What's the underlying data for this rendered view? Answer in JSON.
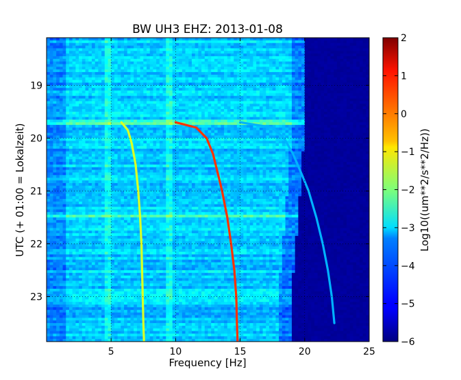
{
  "chart_data": {
    "type": "heatmap",
    "title": "BW UH3 EHZ: 2013-01-08",
    "xlabel": "Frequency [Hz]",
    "ylabel": "UTC (+ 01:00 = Lokalzeit)",
    "xlim": [
      0,
      25
    ],
    "ylim": [
      18.1,
      23.85
    ],
    "y_inverted": true,
    "x_ticks": [
      5,
      10,
      15,
      20,
      25
    ],
    "x_tick_labels": [
      "5",
      "10",
      "15",
      "20",
      "25"
    ],
    "y_ticks": [
      19,
      20,
      21,
      22,
      23
    ],
    "y_tick_labels": [
      "19",
      "20",
      "21",
      "22",
      "23"
    ],
    "grid": true,
    "colorbar": {
      "label": "Log10((um**2/s**2/Hz))",
      "range": [
        -6,
        2
      ],
      "ticks": [
        2,
        1,
        0,
        -1,
        -2,
        -3,
        -4,
        -5,
        -6
      ],
      "tick_labels": [
        "2",
        "1",
        "0",
        "−1",
        "−2",
        "−3",
        "−4",
        "−5",
        "−6"
      ],
      "colormap": "jet"
    },
    "features": {
      "cutoff_frequency_hz": {
        "y": [
          18.1,
          19.7,
          19.8,
          21.5,
          22.9,
          23.85
        ],
        "x": [
          20,
          20,
          20,
          19.5,
          19,
          19
        ]
      },
      "tremor_lines": [
        {
          "name": "",
          "peak_value": -1.3,
          "y": [
            19.7,
            19.85,
            20.1,
            20.5,
            21.0,
            21.5,
            22.0,
            22.5,
            23.0,
            23.5,
            23.85
          ],
          "x": [
            5.8,
            6.3,
            6.6,
            6.9,
            7.1,
            7.25,
            7.35,
            7.4,
            7.45,
            7.5,
            7.55
          ]
        },
        {
          "name": "",
          "peak_value": 0.6,
          "y": [
            19.7,
            19.8,
            20.0,
            20.3,
            20.7,
            21.0,
            21.5,
            22.0,
            22.5,
            23.0,
            23.5,
            23.85
          ],
          "x": [
            10.0,
            11.6,
            12.4,
            12.9,
            13.3,
            13.6,
            14.0,
            14.3,
            14.55,
            14.7,
            14.75,
            14.8
          ]
        },
        {
          "name": "",
          "peak_value": -3.6,
          "y": [
            19.7,
            19.8,
            20.0,
            20.3,
            20.7,
            21.0,
            21.5,
            22.0,
            22.5,
            23.0,
            23.5
          ],
          "x": [
            15.0,
            17.5,
            18.4,
            19.1,
            19.8,
            20.3,
            20.9,
            21.4,
            21.8,
            22.1,
            22.3
          ]
        }
      ],
      "broadband_bands_hours": [
        19.7,
        21.48
      ]
    }
  }
}
